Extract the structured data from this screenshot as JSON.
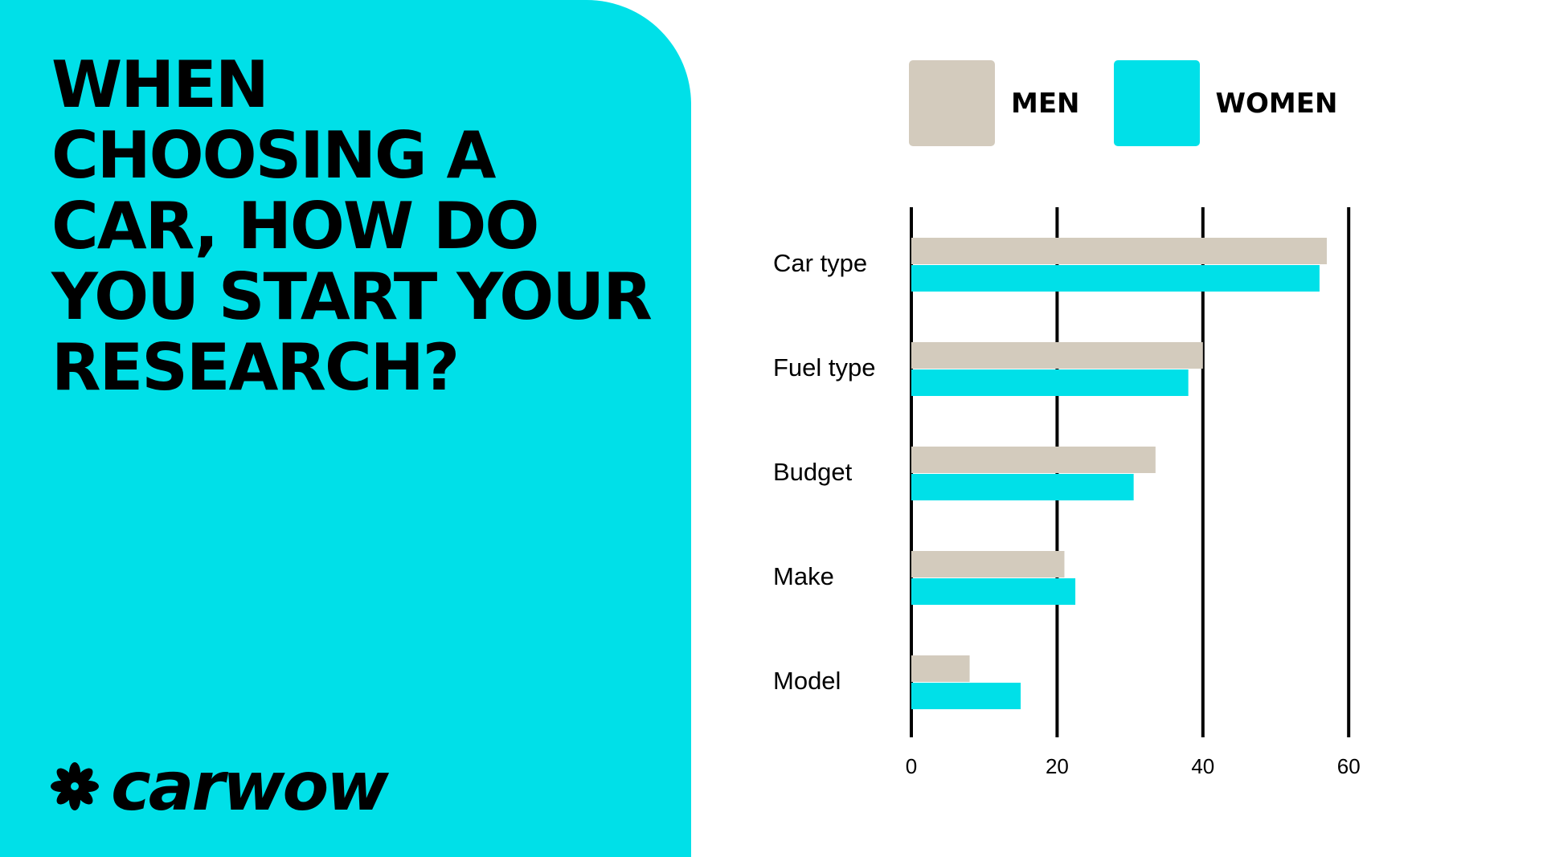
{
  "headline": "WHEN CHOOSING A CAR, HOW DO YOU START YOUR RESEARCH?",
  "brand": {
    "name": "carwow",
    "icon": "asterisk-flower-icon"
  },
  "colors": {
    "men": "#d3cbbd",
    "women": "#00e0e8",
    "panel": "#00e0e8"
  },
  "chart_data": {
    "type": "bar",
    "orientation": "horizontal",
    "categories": [
      "Car type",
      "Fuel type",
      "Budget",
      "Make",
      "Model"
    ],
    "series": [
      {
        "name": "MEN",
        "values": [
          57,
          40,
          33.5,
          21,
          8
        ]
      },
      {
        "name": "WOMEN",
        "values": [
          56,
          38,
          30.5,
          22.5,
          15
        ]
      }
    ],
    "xticks": [
      "0",
      "20",
      "40",
      "60"
    ],
    "xlim": [
      0,
      63
    ],
    "grid": true,
    "legend": "top"
  }
}
